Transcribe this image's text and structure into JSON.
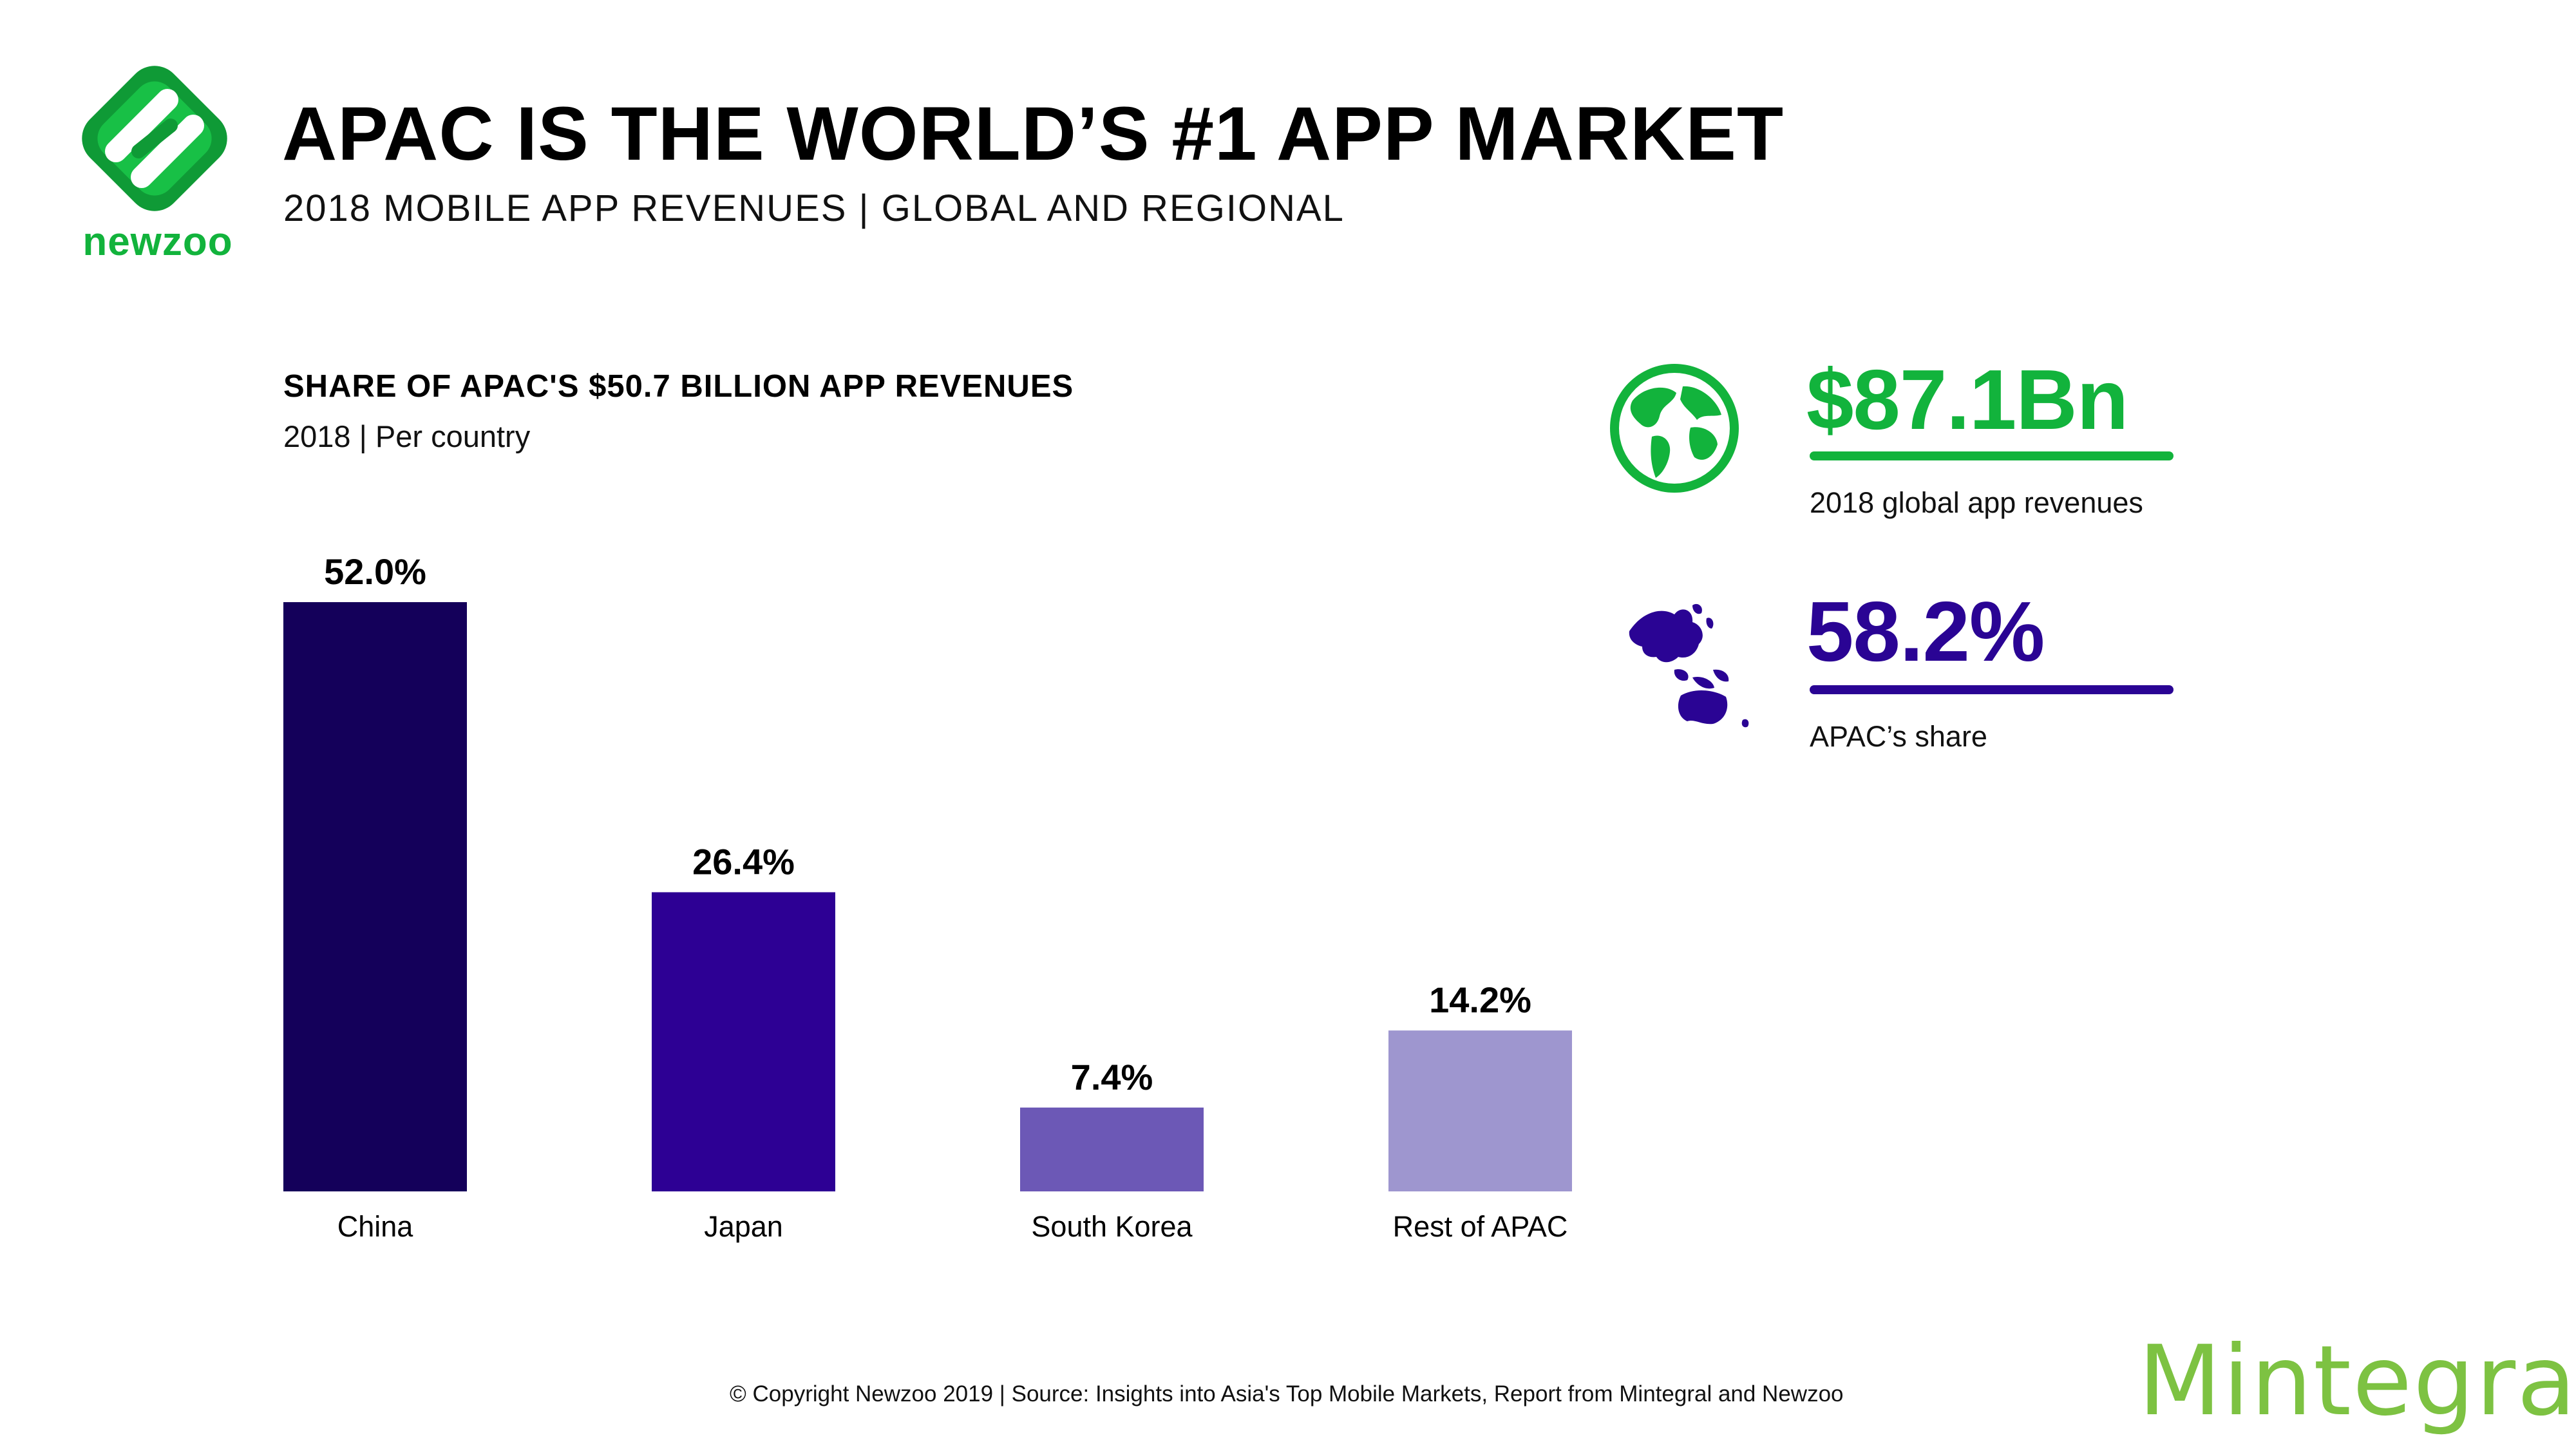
{
  "brand": {
    "logo_text": "newzoo",
    "partner_logo_text": "Mintegral"
  },
  "header": {
    "title": "APAC IS THE WORLD’S #1 APP MARKET",
    "subtitle": "2018 MOBILE APP REVENUES | GLOBAL AND REGIONAL"
  },
  "stats": {
    "global": {
      "value": "$87.1Bn",
      "caption": "2018 global app revenues",
      "icon": "globe-icon",
      "color": "#12b33c"
    },
    "apac": {
      "value": "58.2%",
      "caption": "APAC’s share",
      "icon": "apac-map-icon",
      "color": "#2a0494"
    }
  },
  "chart_data": {
    "type": "bar",
    "title": "SHARE OF APAC'S $50.7 BILLION APP REVENUES",
    "subtitle": "2018 | Per country",
    "categories": [
      "China",
      "Japan",
      "South Korea",
      "Rest of APAC"
    ],
    "values": [
      52.0,
      26.4,
      7.4,
      14.2
    ],
    "value_labels": [
      "52.0%",
      "26.4%",
      "7.4%",
      "14.2%"
    ],
    "colors": [
      "#14005a",
      "#2d0094",
      "#6c58b6",
      "#9e96cf"
    ],
    "ylim": [
      0,
      52.0
    ],
    "grid": false
  },
  "footer": {
    "note": "© Copyright Newzoo 2019 | Source: Insights into Asia's Top Mobile Markets, Report from Mintegral and Newzoo"
  }
}
